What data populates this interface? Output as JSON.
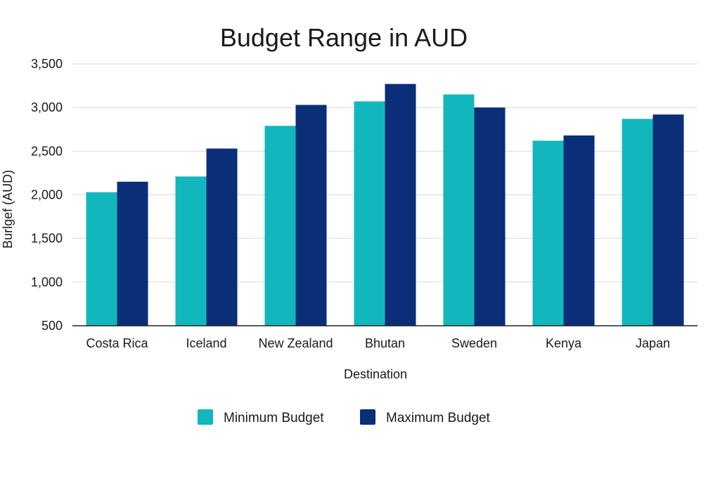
{
  "chart_data": {
    "type": "bar",
    "title": "Budget Range in AUD",
    "xlabel": "Destination",
    "ylabel": "Burlgef (AUD)",
    "categories": [
      "Costa Rica",
      "Iceland",
      "New Zealand",
      "Bhutan",
      "Sweden",
      "Kenya",
      "Japan"
    ],
    "series": [
      {
        "name": "Minimum Budget",
        "color": "#12b7bd",
        "values": [
          2030,
          2210,
          2790,
          3070,
          3150,
          2620,
          2870
        ]
      },
      {
        "name": "Maximum Budget",
        "color": "#0b2e78",
        "values": [
          2150,
          2530,
          3030,
          3270,
          3000,
          2680,
          2920
        ]
      }
    ],
    "ylim": [
      500,
      3500
    ],
    "yticks": [
      500,
      1000,
      1500,
      2000,
      2500,
      3000,
      3500
    ],
    "ytick_labels": [
      "500",
      "1,000",
      "1,500",
      "2,000",
      "2,500",
      "3,000",
      "3,500"
    ],
    "grid": true,
    "legend_position": "bottom"
  }
}
